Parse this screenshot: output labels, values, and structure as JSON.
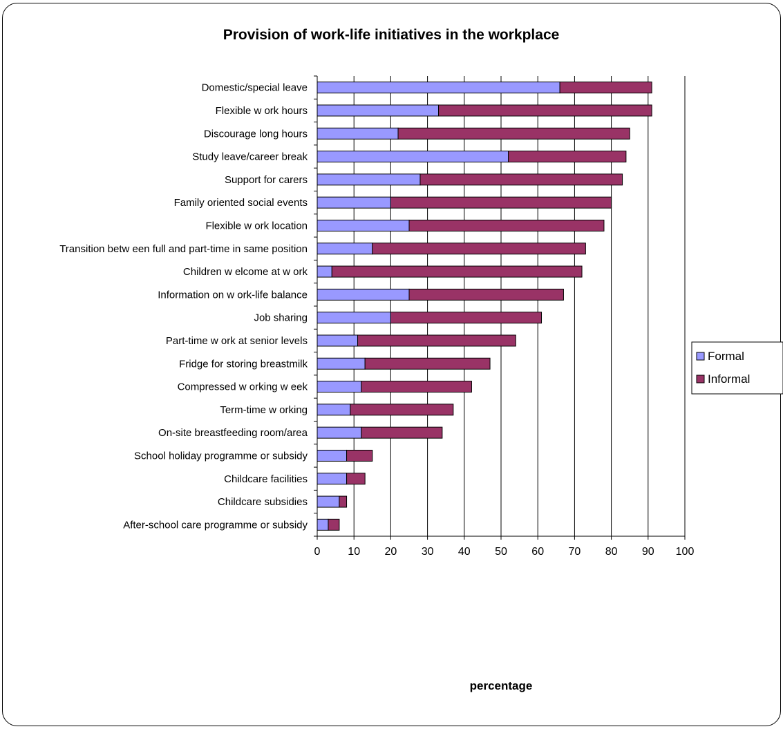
{
  "chart_data": {
    "type": "bar",
    "orientation": "horizontal",
    "stacked": true,
    "title": "Provision of work-life initiatives in the workplace",
    "xlabel": "percentage",
    "ylabel": "",
    "xlim": [
      0,
      100
    ],
    "xticks": [
      0,
      10,
      20,
      30,
      40,
      50,
      60,
      70,
      80,
      90,
      100
    ],
    "grid": "vertical",
    "legend_position": "right",
    "categories": [
      "Domestic/special leave",
      "Flexible w ork hours",
      "Discourage long hours",
      "Study leave/career break",
      "Support for carers",
      "Family oriented social events",
      "Flexible w ork location",
      "Transition betw een full and part-time in same position",
      "Children w elcome at w ork",
      "Information on w ork-life balance",
      "Job sharing",
      "Part-time w ork at senior levels",
      "Fridge for storing breastmilk",
      "Compressed w orking w eek",
      "Term-time w orking",
      "On-site breastfeeding room/area",
      "School holiday programme or subsidy",
      "Childcare facilities",
      "Childcare subsidies",
      "After-school care programme or subsidy"
    ],
    "series": [
      {
        "name": "Formal",
        "color": "#9999ff",
        "values": [
          66,
          33,
          22,
          52,
          28,
          20,
          25,
          15,
          4,
          25,
          20,
          11,
          13,
          12,
          9,
          12,
          8,
          8,
          6,
          3
        ]
      },
      {
        "name": "Informal",
        "color": "#993366",
        "values": [
          25,
          58,
          63,
          32,
          55,
          60,
          53,
          58,
          68,
          42,
          41,
          43,
          34,
          30,
          28,
          22,
          7,
          5,
          2,
          3
        ]
      }
    ]
  }
}
